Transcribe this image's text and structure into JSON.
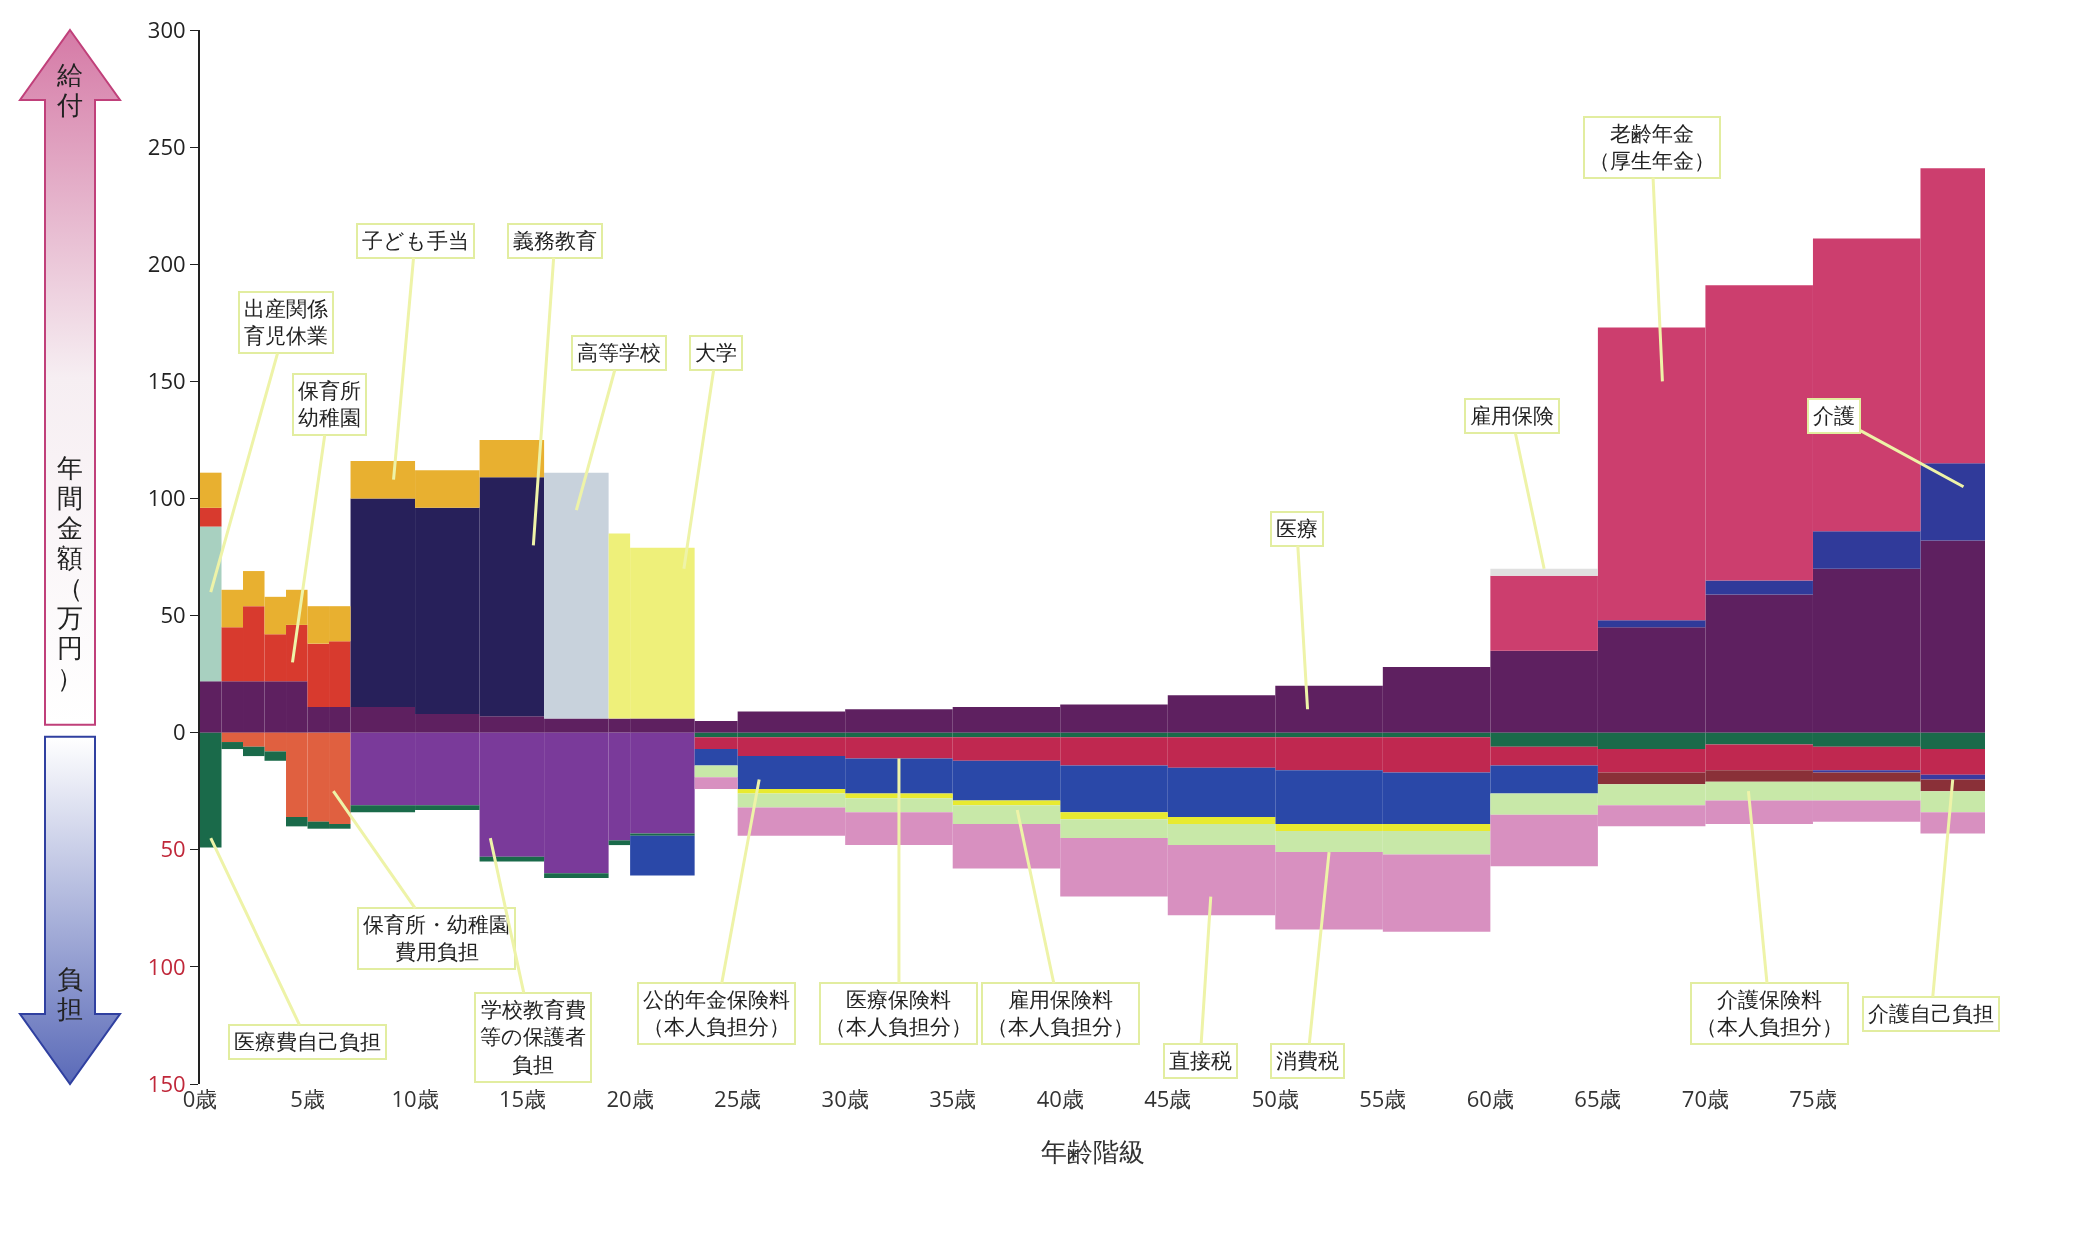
{
  "chart_data": {
    "type": "bar",
    "stacked": true,
    "xlabel": "年齢階級",
    "ylabel": "年間金額（万円）",
    "x": [
      0.5,
      1.5,
      2.5,
      3.5,
      4.5,
      5.5,
      6.5,
      8.5,
      11.5,
      14.5,
      17.5,
      19.5,
      21.5,
      24,
      27.5,
      32.5,
      37.5,
      42.5,
      47.5,
      52.5,
      57.5,
      62.5,
      67.5,
      72.5,
      77.5,
      81.5
    ],
    "xlim": [
      0,
      83
    ],
    "xticks": [
      {
        "value": 0,
        "label": "0歳"
      },
      {
        "value": 5,
        "label": "5歳"
      },
      {
        "value": 10,
        "label": "10歳"
      },
      {
        "value": 15,
        "label": "15歳"
      },
      {
        "value": 20,
        "label": "20歳"
      },
      {
        "value": 25,
        "label": "25歳"
      },
      {
        "value": 30,
        "label": "30歳"
      },
      {
        "value": 35,
        "label": "35歳"
      },
      {
        "value": 40,
        "label": "40歳"
      },
      {
        "value": 45,
        "label": "45歳"
      },
      {
        "value": 50,
        "label": "50歳"
      },
      {
        "value": 55,
        "label": "55歳"
      },
      {
        "value": 60,
        "label": "60歳"
      },
      {
        "value": 65,
        "label": "65歳"
      },
      {
        "value": 70,
        "label": "70歳"
      },
      {
        "value": 75,
        "label": "75歳"
      }
    ],
    "ylim": [
      -150,
      300
    ],
    "yticks": [
      300,
      250,
      200,
      150,
      100,
      50,
      0,
      {
        "value": -50,
        "label": "50"
      },
      {
        "value": -100,
        "label": "100"
      },
      {
        "value": -150,
        "label": "150"
      }
    ],
    "series": [
      {
        "color": "#5e2060",
        "values": [
          22,
          22,
          22,
          22,
          22,
          11,
          11,
          11,
          8,
          7,
          6,
          6,
          6,
          5,
          9,
          10,
          11,
          12,
          16,
          20,
          28,
          35,
          45,
          59,
          70,
          82
        ]
      },
      {
        "color": "#a8d0c0",
        "values": [
          66,
          0,
          0,
          0,
          0,
          0,
          0,
          0,
          0,
          0,
          0,
          0,
          0,
          0,
          0,
          0,
          0,
          0,
          0,
          0,
          0,
          0,
          0,
          0,
          0,
          0
        ]
      },
      {
        "color": "#d83a2e",
        "values": [
          8,
          23,
          32,
          20,
          24,
          27,
          28,
          0,
          0,
          0,
          0,
          0,
          0,
          0,
          0,
          0,
          0,
          0,
          0,
          0,
          0,
          0,
          0,
          0,
          0,
          0
        ]
      },
      {
        "color": "#27205a",
        "values": [
          0,
          0,
          0,
          0,
          0,
          0,
          0,
          89,
          88,
          102,
          0,
          0,
          0,
          0,
          0,
          0,
          0,
          0,
          0,
          0,
          0,
          0,
          0,
          0,
          0,
          0
        ]
      },
      {
        "color": "#c8d2dc",
        "values": [
          0,
          0,
          0,
          0,
          0,
          0,
          0,
          0,
          0,
          0,
          105,
          0,
          0,
          0,
          0,
          0,
          0,
          0,
          0,
          0,
          0,
          0,
          0,
          0,
          0,
          0
        ]
      },
      {
        "color": "#eef07a",
        "values": [
          0,
          0,
          0,
          0,
          0,
          0,
          0,
          0,
          0,
          0,
          0,
          79,
          73,
          0,
          0,
          0,
          0,
          0,
          0,
          0,
          0,
          0,
          0,
          0,
          0,
          0
        ]
      },
      {
        "color": "#e8b030",
        "values": [
          15,
          16,
          15,
          16,
          15,
          16,
          15,
          16,
          16,
          16,
          0,
          0,
          0,
          0,
          0,
          0,
          0,
          0,
          0,
          0,
          0,
          0,
          0,
          0,
          0,
          0
        ]
      },
      {
        "color": "#303a9a",
        "values": [
          0,
          0,
          0,
          0,
          0,
          0,
          0,
          0,
          0,
          0,
          0,
          0,
          0,
          0,
          0,
          0,
          0,
          0,
          0,
          0,
          0,
          0,
          3,
          6,
          16,
          33
        ]
      },
      {
        "color": "#cc3e6e",
        "values": [
          0,
          0,
          0,
          0,
          0,
          0,
          0,
          0,
          0,
          0,
          0,
          0,
          0,
          0,
          0,
          0,
          0,
          0,
          0,
          0,
          0,
          32,
          125,
          126,
          125,
          126
        ]
      },
      {
        "color": "#e0e0e0",
        "values": [
          0,
          0,
          0,
          0,
          0,
          0,
          0,
          0,
          0,
          0,
          0,
          0,
          0,
          0,
          0,
          0,
          0,
          0,
          0,
          0,
          0,
          3,
          0,
          0,
          0,
          0
        ]
      },
      {
        "color": "#e06040",
        "values": [
          0,
          -4,
          -6,
          -8,
          -36,
          -38,
          -39,
          0,
          0,
          0,
          0,
          0,
          0,
          0,
          0,
          0,
          0,
          0,
          0,
          0,
          0,
          0,
          0,
          0,
          0,
          0
        ]
      },
      {
        "color": "#7a3a9a",
        "values": [
          0,
          0,
          0,
          0,
          0,
          0,
          0,
          -31,
          -31,
          -53,
          -60,
          -46,
          -43,
          0,
          0,
          0,
          0,
          0,
          0,
          0,
          0,
          0,
          0,
          0,
          0,
          0
        ]
      },
      {
        "color": "#1a6a4a",
        "values": [
          -49,
          -3,
          -4,
          -4,
          -4,
          -3,
          -2,
          -3,
          -2,
          -2,
          -2,
          -2,
          -1,
          -2,
          -2,
          -2,
          -2,
          -2,
          -2,
          -2,
          -2,
          -6,
          -7,
          -5,
          -6,
          -7
        ]
      },
      {
        "color": "#c02850",
        "values": [
          0,
          0,
          0,
          0,
          0,
          0,
          0,
          0,
          0,
          0,
          0,
          0,
          0,
          -5,
          -8,
          -9,
          -10,
          -12,
          -13,
          -14,
          -15,
          -8,
          -10,
          -11,
          -10,
          -11
        ]
      },
      {
        "color": "#3a3aa0",
        "values": [
          0,
          0,
          0,
          0,
          0,
          0,
          0,
          0,
          0,
          0,
          0,
          0,
          0,
          0,
          0,
          0,
          0,
          0,
          0,
          0,
          0,
          0,
          0,
          0,
          -1,
          -2
        ]
      },
      {
        "color": "#8a3038",
        "values": [
          0,
          0,
          0,
          0,
          0,
          0,
          0,
          0,
          0,
          0,
          0,
          0,
          0,
          0,
          0,
          0,
          0,
          0,
          0,
          0,
          0,
          0,
          -5,
          -5,
          -4,
          -5
        ]
      },
      {
        "color": "#2a48a8",
        "values": [
          0,
          0,
          0,
          0,
          0,
          0,
          0,
          0,
          0,
          0,
          0,
          0,
          -17,
          -7,
          -14,
          -15,
          -17,
          -20,
          -21,
          -23,
          -22,
          -12,
          0,
          0,
          0,
          0
        ]
      },
      {
        "color": "#e8ea30",
        "values": [
          0,
          0,
          0,
          0,
          0,
          0,
          0,
          0,
          0,
          0,
          0,
          0,
          0,
          0,
          -2,
          -2,
          -2,
          -3,
          -3,
          -3,
          -3,
          0,
          0,
          0,
          0,
          0
        ]
      },
      {
        "color": "#c8e8a8",
        "values": [
          0,
          0,
          0,
          0,
          0,
          0,
          0,
          0,
          0,
          0,
          0,
          0,
          0,
          -5,
          -6,
          -6,
          -8,
          -8,
          -9,
          -9,
          -10,
          -9,
          -9,
          -8,
          -8,
          -9
        ]
      },
      {
        "color": "#d890c0",
        "values": [
          0,
          0,
          0,
          0,
          0,
          0,
          0,
          0,
          0,
          0,
          0,
          0,
          0,
          -5,
          -12,
          -14,
          -19,
          -25,
          -30,
          -33,
          -33,
          -22,
          -9,
          -10,
          -9,
          -9
        ]
      }
    ],
    "annotations": [
      "給付",
      "負担",
      "出産関係育児休業",
      "保育所幼稚園",
      "子ども手当",
      "義務教育",
      "高等学校",
      "大学",
      "医療",
      {
        "text": "雇用保険",
        "x": 62.5,
        "y": 70
      },
      "老齢年金（厚生年金）",
      "介護",
      "医療費自己負担",
      "保育所・幼稚園費用負担",
      "学校教育費等の保護者負担",
      "公的年金保険料（本人負担分）",
      {
        "text": "医療保険料（本人負担分）",
        "x": 32.5,
        "y": -11
      },
      "雇用保険料（本人負担分）",
      "直接税",
      {
        "text": "消費税",
        "x": 52.5,
        "y": -51
      },
      "介護保険料（本人負担分）",
      {
        "text": "介護自己負担",
        "x": 81.5,
        "y": -20
      }
    ]
  }
}
